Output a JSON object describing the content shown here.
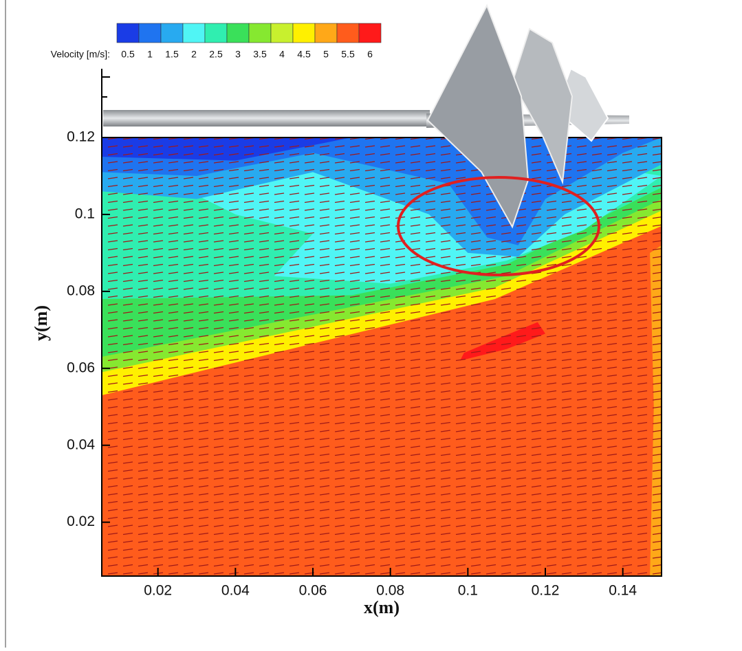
{
  "chart_data": {
    "type": "contour",
    "xlabel": "x(m)",
    "ylabel": "y(m)",
    "colorbar": {
      "label": "Velocity [m/s]:",
      "levels": [
        0.5,
        1,
        1.5,
        2,
        2.5,
        3,
        3.5,
        4,
        4.5,
        5,
        5.5,
        6
      ],
      "colors": [
        "#1a3ce6",
        "#1f74f0",
        "#28aaf0",
        "#50f5f5",
        "#30eeb0",
        "#3ae05a",
        "#86e830",
        "#c8f02e",
        "#fff000",
        "#ffa818",
        "#ff5c1c",
        "#ff1a1a"
      ]
    },
    "xlim": [
      0.0055,
      0.15
    ],
    "ylim": [
      0.006,
      0.12
    ],
    "xticks": [
      0.02,
      0.04,
      0.06,
      0.08,
      0.1,
      0.12,
      0.14
    ],
    "yticks": [
      0.02,
      0.04,
      0.06,
      0.08,
      0.1,
      0.12
    ],
    "regions": [
      {
        "value": 5.5,
        "color": "#ff5c1c",
        "points": [
          [
            0.0055,
            0.006
          ],
          [
            0.15,
            0.006
          ],
          [
            0.15,
            0.12
          ],
          [
            0.0055,
            0.12
          ]
        ]
      },
      {
        "value": 5,
        "color": "#ffa818",
        "points": [
          [
            0.147,
            0.006
          ],
          [
            0.15,
            0.006
          ],
          [
            0.15,
            0.092
          ],
          [
            0.147,
            0.09
          ],
          [
            0.148,
            0.05
          ]
        ]
      },
      {
        "value": 4.5,
        "color": "#fff000",
        "points": [
          [
            0.0055,
            0.12
          ],
          [
            0.15,
            0.12
          ],
          [
            0.15,
            0.097
          ],
          [
            0.107,
            0.078
          ],
          [
            0.0055,
            0.053
          ]
        ]
      },
      {
        "value": 3.5,
        "color": "#86e830",
        "points": [
          [
            0.0055,
            0.12
          ],
          [
            0.15,
            0.12
          ],
          [
            0.15,
            0.101
          ],
          [
            0.107,
            0.081
          ],
          [
            0.0055,
            0.059
          ]
        ]
      },
      {
        "value": 3,
        "color": "#3ae05a",
        "points": [
          [
            0.0055,
            0.12
          ],
          [
            0.15,
            0.12
          ],
          [
            0.15,
            0.104
          ],
          [
            0.11,
            0.084
          ],
          [
            0.0055,
            0.063
          ]
        ]
      },
      {
        "value": 2.5,
        "color": "#30eeb0",
        "points": [
          [
            0.0055,
            0.12
          ],
          [
            0.15,
            0.12
          ],
          [
            0.15,
            0.107
          ],
          [
            0.11,
            0.087
          ],
          [
            0.07,
            0.079
          ],
          [
            0.0055,
            0.078
          ]
        ]
      },
      {
        "value": 2,
        "color": "#50f5f5",
        "points": [
          [
            0.02,
            0.11
          ],
          [
            0.09,
            0.12
          ],
          [
            0.15,
            0.11
          ],
          [
            0.13,
            0.096
          ],
          [
            0.11,
            0.088
          ],
          [
            0.08,
            0.082
          ],
          [
            0.05,
            0.084
          ],
          [
            0.06,
            0.095
          ],
          [
            0.04,
            0.1
          ]
        ]
      },
      {
        "value": 1.5,
        "color": "#28aaf0",
        "points": [
          [
            0.0055,
            0.12
          ],
          [
            0.15,
            0.12
          ],
          [
            0.15,
            0.113
          ],
          [
            0.125,
            0.1
          ],
          [
            0.113,
            0.089
          ],
          [
            0.1,
            0.09
          ],
          [
            0.09,
            0.1
          ],
          [
            0.06,
            0.111
          ],
          [
            0.03,
            0.104
          ],
          [
            0.0055,
            0.106
          ]
        ]
      },
      {
        "value": 1,
        "color": "#1f74f0",
        "points": [
          [
            0.0055,
            0.12
          ],
          [
            0.15,
            0.12
          ],
          [
            0.14,
            0.116
          ],
          [
            0.12,
            0.104
          ],
          [
            0.113,
            0.092
          ],
          [
            0.105,
            0.094
          ],
          [
            0.095,
            0.108
          ],
          [
            0.06,
            0.116
          ],
          [
            0.03,
            0.11
          ],
          [
            0.0055,
            0.111
          ]
        ]
      },
      {
        "value": 0.5,
        "color": "#1a3ce6",
        "points": [
          [
            0.0055,
            0.12
          ],
          [
            0.07,
            0.12
          ],
          [
            0.04,
            0.114
          ],
          [
            0.0055,
            0.115
          ]
        ]
      },
      {
        "value": 6,
        "color": "#ff1a1a",
        "points": [
          [
            0.098,
            0.062
          ],
          [
            0.11,
            0.065
          ],
          [
            0.12,
            0.069
          ],
          [
            0.118,
            0.072
          ],
          [
            0.106,
            0.067
          ],
          [
            0.099,
            0.064
          ]
        ]
      }
    ]
  }
}
